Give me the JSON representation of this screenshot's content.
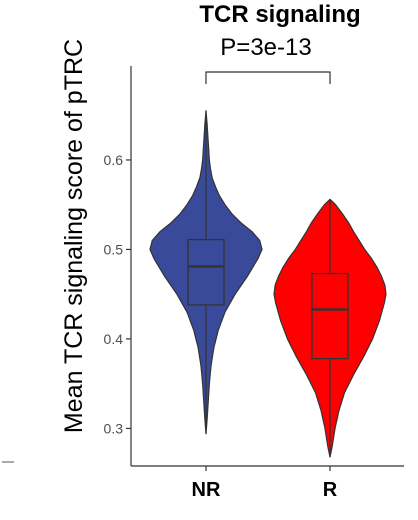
{
  "chart_data": {
    "type": "violin",
    "title": "TCR signaling",
    "ylabel": "Mean TCR signaling score of pTRC",
    "xlabel": "",
    "categories": [
      "NR",
      "R"
    ],
    "ylim": [
      0.258,
      0.705
    ],
    "yticks": [
      0.3,
      0.4,
      0.5,
      0.6
    ],
    "ytick_labels": [
      "0.3",
      "0.4",
      "0.5",
      "0.6"
    ],
    "grid": false,
    "legend": "none",
    "annotation": {
      "text": "P=3e-13",
      "between": [
        "NR",
        "R"
      ]
    },
    "series": [
      {
        "category": "NR",
        "color": "#3a4a9a",
        "min": 0.294,
        "q1": 0.438,
        "median": 0.481,
        "q3": 0.511,
        "max": 0.655,
        "density": [
          [
            0.294,
            0.0
          ],
          [
            0.31,
            0.02
          ],
          [
            0.33,
            0.04
          ],
          [
            0.35,
            0.06
          ],
          [
            0.37,
            0.09
          ],
          [
            0.39,
            0.14
          ],
          [
            0.41,
            0.22
          ],
          [
            0.43,
            0.34
          ],
          [
            0.45,
            0.52
          ],
          [
            0.47,
            0.74
          ],
          [
            0.49,
            0.93
          ],
          [
            0.5,
            1.0
          ],
          [
            0.51,
            0.96
          ],
          [
            0.52,
            0.82
          ],
          [
            0.53,
            0.62
          ],
          [
            0.54,
            0.46
          ],
          [
            0.55,
            0.34
          ],
          [
            0.56,
            0.24
          ],
          [
            0.57,
            0.17
          ],
          [
            0.58,
            0.11
          ],
          [
            0.59,
            0.08
          ],
          [
            0.6,
            0.06
          ],
          [
            0.62,
            0.04
          ],
          [
            0.64,
            0.02
          ],
          [
            0.655,
            0.0
          ]
        ]
      },
      {
        "category": "R",
        "color": "#ff0000",
        "min": 0.268,
        "q1": 0.378,
        "median": 0.433,
        "q3": 0.473,
        "max": 0.556,
        "density": [
          [
            0.268,
            0.0
          ],
          [
            0.28,
            0.04
          ],
          [
            0.3,
            0.09
          ],
          [
            0.32,
            0.16
          ],
          [
            0.34,
            0.26
          ],
          [
            0.36,
            0.42
          ],
          [
            0.38,
            0.6
          ],
          [
            0.4,
            0.76
          ],
          [
            0.42,
            0.88
          ],
          [
            0.44,
            0.97
          ],
          [
            0.45,
            1.0
          ],
          [
            0.46,
            0.98
          ],
          [
            0.47,
            0.92
          ],
          [
            0.48,
            0.84
          ],
          [
            0.49,
            0.74
          ],
          [
            0.5,
            0.62
          ],
          [
            0.51,
            0.52
          ],
          [
            0.52,
            0.42
          ],
          [
            0.53,
            0.33
          ],
          [
            0.54,
            0.22
          ],
          [
            0.55,
            0.1
          ],
          [
            0.556,
            0.0
          ]
        ]
      }
    ]
  }
}
